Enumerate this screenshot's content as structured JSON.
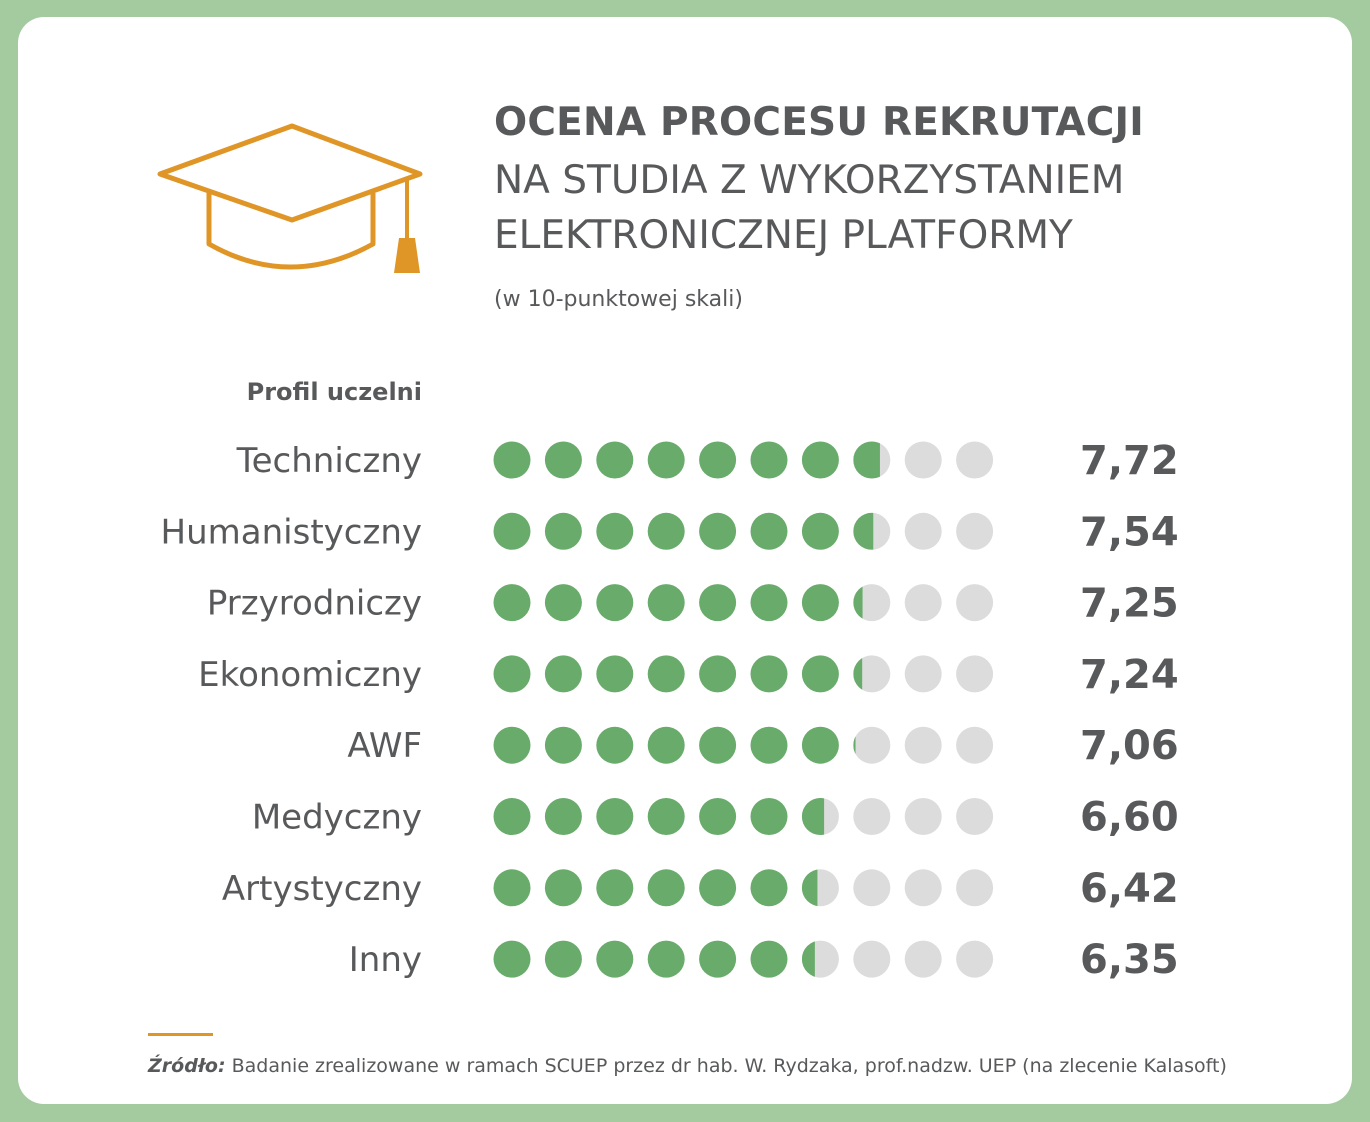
{
  "title_bold": "OCENA PROCESU REKRUTACJI",
  "title_line2": "NA STUDIA Z WYKORZYSTANIEM",
  "title_line3": "ELEKTRONICZNEJ PLATFORMY",
  "subtitle": "(w 10-punktowej skali)",
  "column_header": "Profil uczelni",
  "icon": "graduation-cap-icon",
  "source_label": "Źródło:",
  "source_text": "Badanie zrealizowane w ramach SCUEP przez dr hab. W. Rydzaka, prof.nadzw. UEP (na zlecenie Kalasoft)",
  "colors": {
    "filled": "#68ab6b",
    "empty": "#dcdcdc",
    "accent": "#e09627",
    "text": "#58595b"
  },
  "chart_data": {
    "type": "bar",
    "scale_max": 10,
    "categories": [
      "Techniczny",
      "Humanistyczny",
      "Przyrodniczy",
      "Ekonomiczny",
      "AWF",
      "Medyczny",
      "Artystyczny",
      "Inny"
    ],
    "values": [
      7.72,
      7.54,
      7.25,
      7.24,
      7.06,
      6.6,
      6.42,
      6.35
    ],
    "value_labels": [
      "7,72",
      "7,54",
      "7,25",
      "7,24",
      "7,06",
      "6,60",
      "6,42",
      "6,35"
    ]
  }
}
